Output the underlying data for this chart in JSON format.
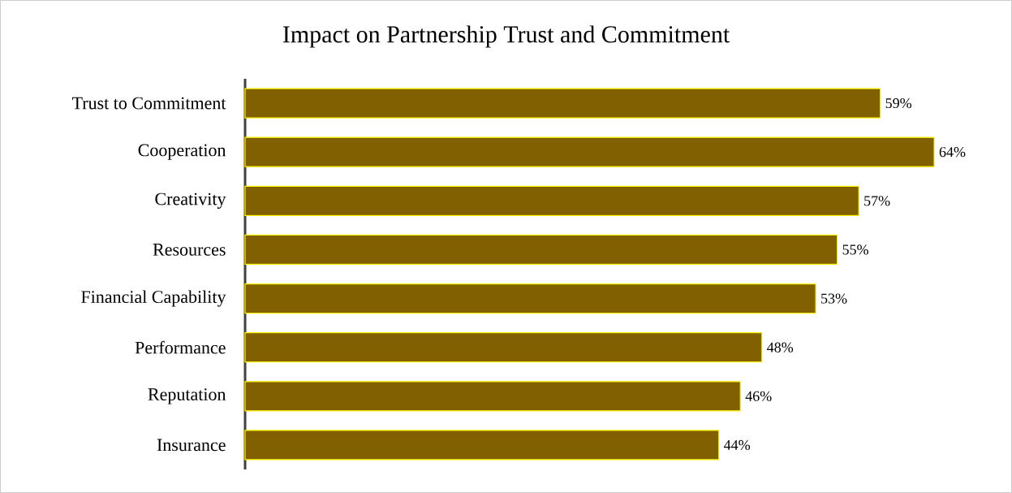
{
  "chart_data": {
    "type": "bar",
    "orientation": "horizontal",
    "title": "Impact on Partnership Trust and Commitment",
    "categories": [
      "Trust to Commitment",
      "Cooperation",
      "Creativity",
      "Resources",
      "Financial Capability",
      "Performance",
      "Reputation",
      "Insurance"
    ],
    "values": [
      59,
      64,
      57,
      55,
      53,
      48,
      46,
      44
    ],
    "value_labels": [
      "59%",
      "64%",
      "57%",
      "55%",
      "53%",
      "48%",
      "46%",
      "44%"
    ],
    "color": "#806000"
  }
}
